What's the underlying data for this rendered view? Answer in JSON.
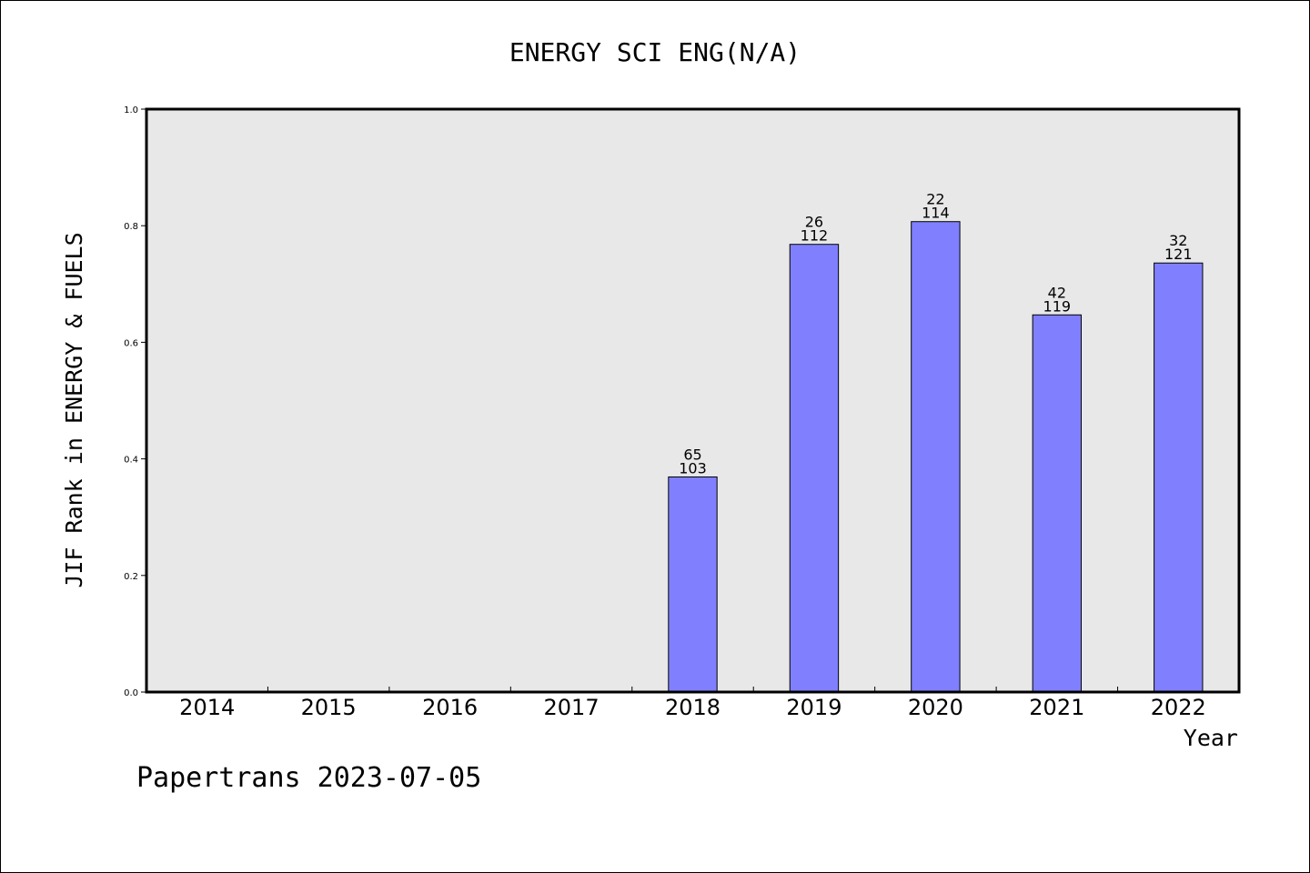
{
  "chart_data": {
    "type": "bar",
    "title": "ENERGY SCI ENG(N/A)",
    "xlabel": "Year",
    "ylabel": "JIF Rank in ENERGY & FUELS",
    "ylim": [
      0,
      1.0
    ],
    "yticks": [
      "0.0",
      "0.2",
      "0.4",
      "0.6",
      "0.8",
      "1.0"
    ],
    "categories": [
      "2014",
      "2015",
      "2016",
      "2017",
      "2018",
      "2019",
      "2020",
      "2021",
      "2022"
    ],
    "values": [
      null,
      null,
      null,
      null,
      0.369,
      0.768,
      0.807,
      0.647,
      0.736
    ],
    "rank_labels": [
      "",
      "",
      "",
      "",
      "65",
      "26",
      "22",
      "42",
      "32"
    ],
    "total_labels": [
      "",
      "",
      "",
      "",
      "103",
      "112",
      "114",
      "119",
      "121"
    ],
    "grid": false,
    "legend": "none",
    "colors": {
      "bar": "#8080ff",
      "plot_background": "#e8e8e8",
      "axis": "#000000"
    }
  },
  "footer": {
    "text": "Papertrans 2023-07-05"
  }
}
